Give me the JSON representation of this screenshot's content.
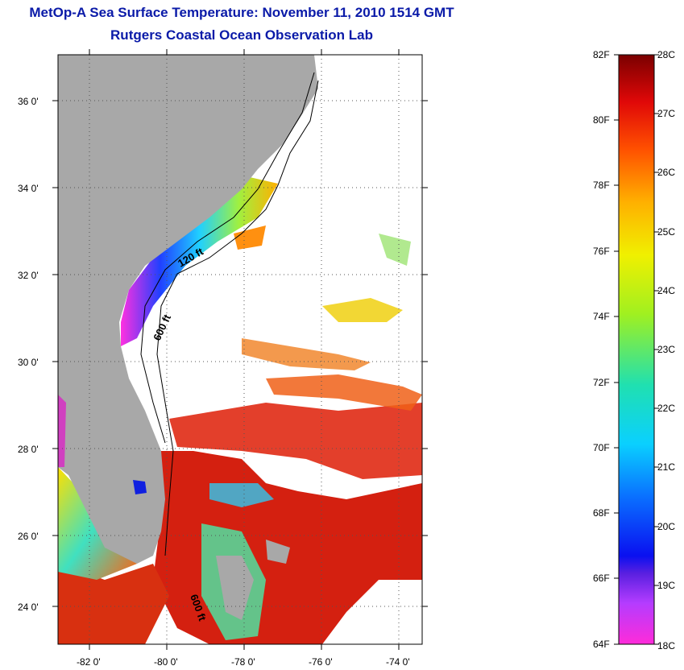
{
  "title": {
    "line1": "MetOp-A Sea Surface Temperature:  November 11, 2010 1514 GMT",
    "line2": "Rutgers Coastal Ocean Observation Lab"
  },
  "map": {
    "latitude_labels": [
      "36 0'",
      "34 0'",
      "32 0'",
      "30 0'",
      "28 0'",
      "26 0'",
      "24 0'"
    ],
    "longitude_labels": [
      "-82 0'",
      "-80 0'",
      "-78 0'",
      "-76 0'",
      "-74 0'"
    ],
    "contour_labels": [
      "120 ft",
      "600 ft",
      "600 ft"
    ],
    "colors": {
      "land": "#a8a8a8",
      "cloud": "#ffffff",
      "gulf_stream": "#d42010"
    }
  },
  "colorbar": {
    "fahrenheit_labels": [
      "82F",
      "80F",
      "78F",
      "76F",
      "74F",
      "72F",
      "70F",
      "68F",
      "66F",
      "64F"
    ],
    "celsius_labels": [
      "28C",
      "27C",
      "26C",
      "25C",
      "24C",
      "23C",
      "22C",
      "21C",
      "20C",
      "19C",
      "18C"
    ]
  }
}
